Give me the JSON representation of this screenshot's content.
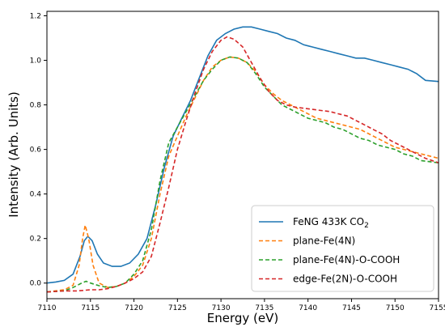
{
  "chart_data": {
    "type": "line",
    "title": "",
    "xlabel": "Energy (eV)",
    "ylabel": "Intensity (Arb. Units)",
    "xlim": [
      7110,
      7155
    ],
    "ylim": [
      -0.07,
      1.22
    ],
    "xticks": [
      {
        "value": 7110,
        "label": "7110"
      },
      {
        "value": 7115,
        "label": "7115"
      },
      {
        "value": 7120,
        "label": "7120"
      },
      {
        "value": 7125,
        "label": "7125"
      },
      {
        "value": 7130,
        "label": "7130"
      },
      {
        "value": 7135,
        "label": "7135"
      },
      {
        "value": 7140,
        "label": "7140"
      },
      {
        "value": 7145,
        "label": "7145"
      },
      {
        "value": 7150,
        "label": "7150"
      },
      {
        "value": 7155,
        "label": "7155"
      }
    ],
    "yticks": [
      {
        "value": 0.0,
        "label": "0.0"
      },
      {
        "value": 0.2,
        "label": "0.2"
      },
      {
        "value": 0.4,
        "label": "0.4"
      },
      {
        "value": 0.6,
        "label": "0.6"
      },
      {
        "value": 0.8,
        "label": "0.8"
      },
      {
        "value": 1.0,
        "label": "1.0"
      },
      {
        "value": 1.2,
        "label": "1.2"
      }
    ],
    "grid": false,
    "legend_position": "lower-right",
    "series": [
      {
        "name": "FeNG 433K CO",
        "name_subscript": "2",
        "color": "#1f77b4",
        "dash": "solid",
        "points": [
          [
            7110,
            0.0
          ],
          [
            7111,
            0.005
          ],
          [
            7112,
            0.012
          ],
          [
            7113,
            0.04
          ],
          [
            7113.8,
            0.12
          ],
          [
            7114.3,
            0.19
          ],
          [
            7114.7,
            0.21
          ],
          [
            7115.2,
            0.19
          ],
          [
            7115.8,
            0.13
          ],
          [
            7116.5,
            0.09
          ],
          [
            7117.5,
            0.075
          ],
          [
            7118.5,
            0.075
          ],
          [
            7119.5,
            0.09
          ],
          [
            7120.5,
            0.13
          ],
          [
            7121.5,
            0.2
          ],
          [
            7122.5,
            0.35
          ],
          [
            7123.5,
            0.52
          ],
          [
            7124.5,
            0.66
          ],
          [
            7125.5,
            0.74
          ],
          [
            7126.5,
            0.82
          ],
          [
            7127.5,
            0.92
          ],
          [
            7128.5,
            1.02
          ],
          [
            7129.5,
            1.09
          ],
          [
            7130.5,
            1.12
          ],
          [
            7131.5,
            1.14
          ],
          [
            7132.5,
            1.15
          ],
          [
            7133.5,
            1.15
          ],
          [
            7134.5,
            1.14
          ],
          [
            7135.5,
            1.13
          ],
          [
            7136.5,
            1.12
          ],
          [
            7137.5,
            1.1
          ],
          [
            7138.5,
            1.09
          ],
          [
            7139.5,
            1.07
          ],
          [
            7140.5,
            1.06
          ],
          [
            7141.5,
            1.05
          ],
          [
            7142.5,
            1.04
          ],
          [
            7143.5,
            1.03
          ],
          [
            7144.5,
            1.02
          ],
          [
            7145.5,
            1.01
          ],
          [
            7146.5,
            1.01
          ],
          [
            7147.5,
            1.0
          ],
          [
            7148.5,
            0.99
          ],
          [
            7149.5,
            0.98
          ],
          [
            7150.5,
            0.97
          ],
          [
            7151.5,
            0.96
          ],
          [
            7152.5,
            0.94
          ],
          [
            7153.5,
            0.91
          ],
          [
            7155,
            0.905
          ]
        ]
      },
      {
        "name": "plane-Fe(4N)",
        "color": "#ff7f0e",
        "dash": "dashed",
        "points": [
          [
            7110,
            -0.04
          ],
          [
            7112,
            -0.03
          ],
          [
            7113,
            -0.01
          ],
          [
            7113.7,
            0.08
          ],
          [
            7114.1,
            0.2
          ],
          [
            7114.4,
            0.26
          ],
          [
            7114.8,
            0.2
          ],
          [
            7115.3,
            0.08
          ],
          [
            7116,
            0.0
          ],
          [
            7117,
            -0.02
          ],
          [
            7118,
            -0.015
          ],
          [
            7119,
            0.0
          ],
          [
            7120,
            0.03
          ],
          [
            7121,
            0.08
          ],
          [
            7122,
            0.2
          ],
          [
            7123,
            0.4
          ],
          [
            7124,
            0.57
          ],
          [
            7125,
            0.66
          ],
          [
            7126,
            0.75
          ],
          [
            7127,
            0.83
          ],
          [
            7128,
            0.91
          ],
          [
            7129,
            0.97
          ],
          [
            7130,
            1.0
          ],
          [
            7131,
            1.015
          ],
          [
            7132,
            1.01
          ],
          [
            7133,
            0.99
          ],
          [
            7134,
            0.95
          ],
          [
            7135,
            0.89
          ],
          [
            7136,
            0.85
          ],
          [
            7137,
            0.82
          ],
          [
            7138,
            0.8
          ],
          [
            7139,
            0.78
          ],
          [
            7140,
            0.76
          ],
          [
            7141,
            0.74
          ],
          [
            7142,
            0.73
          ],
          [
            7143,
            0.72
          ],
          [
            7144,
            0.71
          ],
          [
            7145,
            0.7
          ],
          [
            7146,
            0.69
          ],
          [
            7147,
            0.67
          ],
          [
            7148,
            0.65
          ],
          [
            7149,
            0.63
          ],
          [
            7150,
            0.61
          ],
          [
            7151,
            0.6
          ],
          [
            7152,
            0.59
          ],
          [
            7153,
            0.58
          ],
          [
            7155,
            0.56
          ]
        ]
      },
      {
        "name": "plane-Fe(4N)-O-COOH",
        "color": "#2ca02c",
        "dash": "dashed",
        "points": [
          [
            7110,
            -0.04
          ],
          [
            7112,
            -0.035
          ],
          [
            7113,
            -0.02
          ],
          [
            7114,
            0.0
          ],
          [
            7114.5,
            0.008
          ],
          [
            7115,
            0.0
          ],
          [
            7116,
            -0.012
          ],
          [
            7117,
            -0.02
          ],
          [
            7118,
            -0.015
          ],
          [
            7119,
            0.0
          ],
          [
            7120,
            0.04
          ],
          [
            7121,
            0.1
          ],
          [
            7122,
            0.24
          ],
          [
            7123,
            0.46
          ],
          [
            7124,
            0.63
          ],
          [
            7125,
            0.7
          ],
          [
            7126,
            0.77
          ],
          [
            7127,
            0.84
          ],
          [
            7128,
            0.91
          ],
          [
            7129,
            0.96
          ],
          [
            7130,
            1.0
          ],
          [
            7131,
            1.015
          ],
          [
            7132,
            1.01
          ],
          [
            7133,
            0.99
          ],
          [
            7134,
            0.94
          ],
          [
            7135,
            0.88
          ],
          [
            7136,
            0.84
          ],
          [
            7137,
            0.8
          ],
          [
            7138,
            0.78
          ],
          [
            7139,
            0.76
          ],
          [
            7140,
            0.74
          ],
          [
            7141,
            0.73
          ],
          [
            7142,
            0.72
          ],
          [
            7143,
            0.7
          ],
          [
            7144,
            0.69
          ],
          [
            7145,
            0.67
          ],
          [
            7146,
            0.65
          ],
          [
            7147,
            0.64
          ],
          [
            7148,
            0.62
          ],
          [
            7149,
            0.61
          ],
          [
            7150,
            0.6
          ],
          [
            7151,
            0.58
          ],
          [
            7152,
            0.57
          ],
          [
            7153,
            0.55
          ],
          [
            7155,
            0.54
          ]
        ]
      },
      {
        "name": "edge-Fe(2N)-O-COOH",
        "color": "#d62728",
        "dash": "dashed",
        "points": [
          [
            7110,
            -0.04
          ],
          [
            7112,
            -0.035
          ],
          [
            7113.5,
            -0.035
          ],
          [
            7115,
            -0.03
          ],
          [
            7116,
            -0.03
          ],
          [
            7117,
            -0.025
          ],
          [
            7118,
            -0.015
          ],
          [
            7119,
            0.0
          ],
          [
            7120,
            0.02
          ],
          [
            7121,
            0.05
          ],
          [
            7122,
            0.12
          ],
          [
            7123,
            0.27
          ],
          [
            7124,
            0.43
          ],
          [
            7125,
            0.6
          ],
          [
            7126,
            0.73
          ],
          [
            7127,
            0.85
          ],
          [
            7128,
            0.96
          ],
          [
            7129,
            1.04
          ],
          [
            7130,
            1.09
          ],
          [
            7130.7,
            1.105
          ],
          [
            7131.5,
            1.095
          ],
          [
            7132.5,
            1.06
          ],
          [
            7133.5,
            0.99
          ],
          [
            7134.5,
            0.92
          ],
          [
            7135.5,
            0.86
          ],
          [
            7136.5,
            0.82
          ],
          [
            7137.5,
            0.8
          ],
          [
            7138.5,
            0.79
          ],
          [
            7139.5,
            0.785
          ],
          [
            7140.5,
            0.78
          ],
          [
            7141.5,
            0.775
          ],
          [
            7142.5,
            0.77
          ],
          [
            7143.5,
            0.76
          ],
          [
            7144.5,
            0.75
          ],
          [
            7145.5,
            0.73
          ],
          [
            7146.5,
            0.71
          ],
          [
            7147.5,
            0.69
          ],
          [
            7148.5,
            0.67
          ],
          [
            7149.5,
            0.64
          ],
          [
            7150.5,
            0.62
          ],
          [
            7151.5,
            0.6
          ],
          [
            7152.5,
            0.58
          ],
          [
            7153.5,
            0.56
          ],
          [
            7155,
            0.54
          ]
        ]
      }
    ]
  }
}
